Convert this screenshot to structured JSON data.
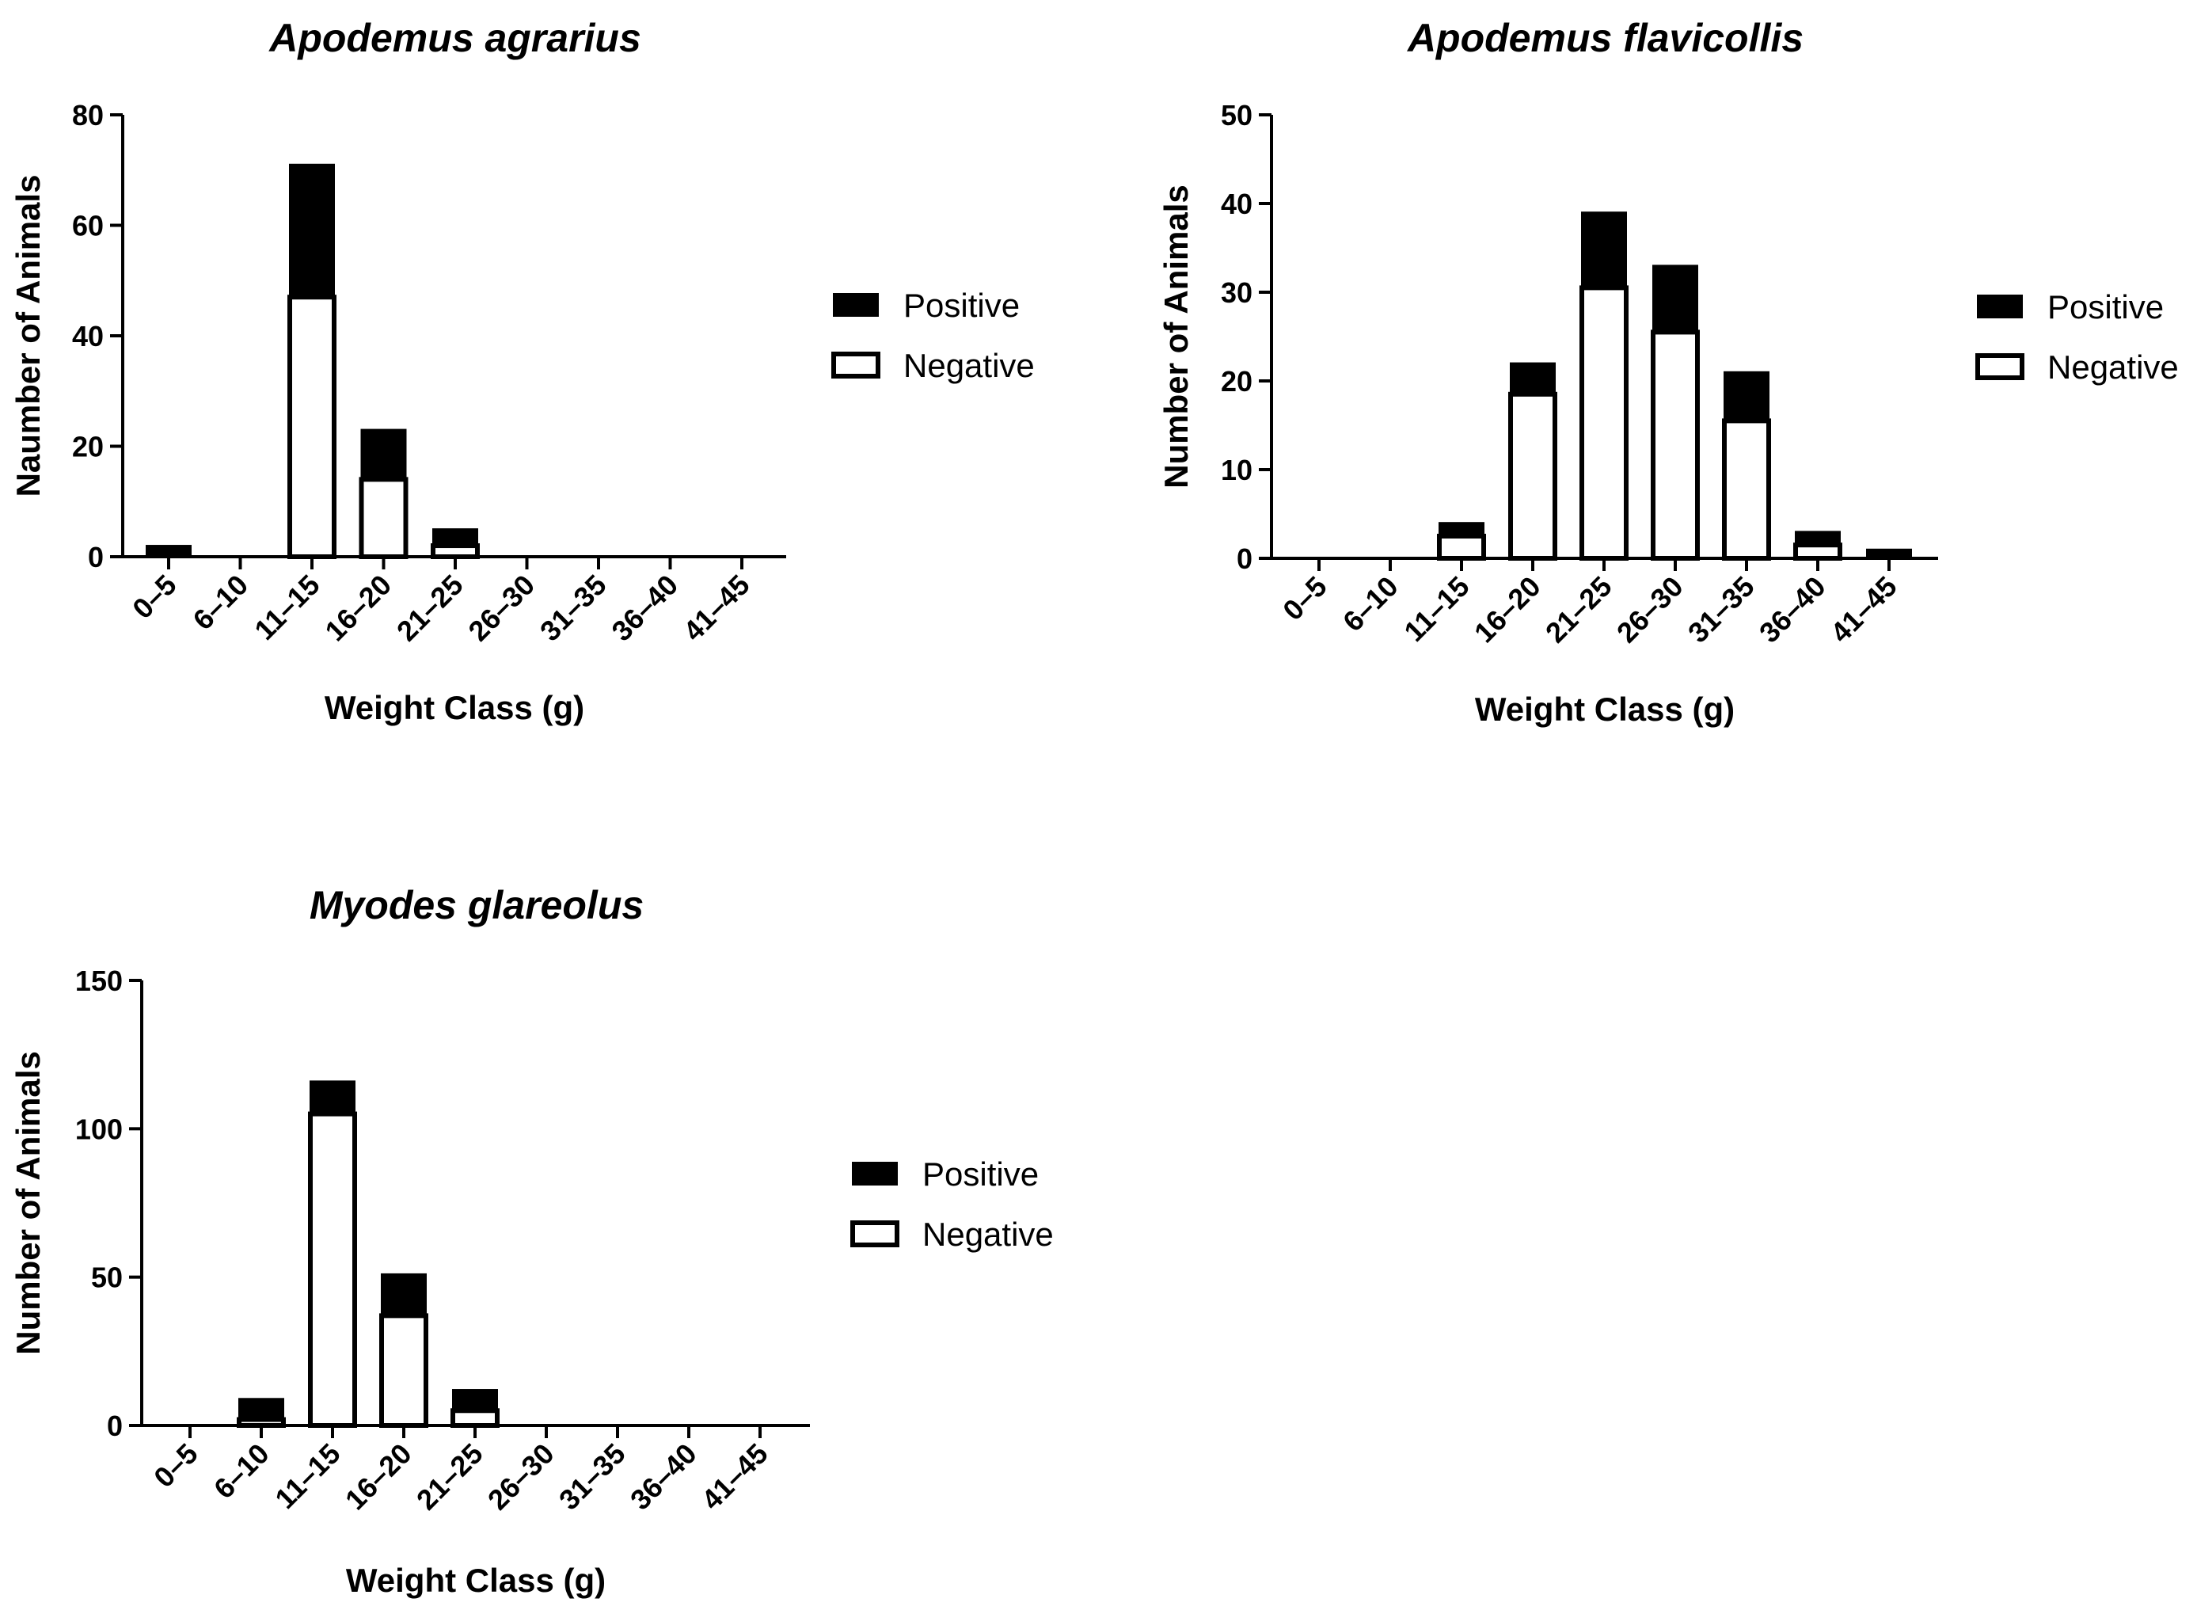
{
  "chart_data": [
    {
      "type": "bar",
      "stacked": true,
      "title": "Apodemus agrarius",
      "xlabel": "Weight Class (g)",
      "ylabel": "Naumber of Animals",
      "categories": [
        "0–5",
        "6–10",
        "11–15",
        "16–20",
        "21–25",
        "26–30",
        "31–35",
        "36–40",
        "41–45"
      ],
      "ylim": [
        0,
        80
      ],
      "yticks": [
        "0",
        "20",
        "40",
        "60",
        "80"
      ],
      "series": [
        {
          "name": "Negative",
          "values": [
            0,
            0,
            47,
            14,
            2,
            0,
            0,
            0,
            0
          ]
        },
        {
          "name": "Positive",
          "values": [
            2,
            0,
            24,
            9,
            3,
            0,
            0,
            0,
            0
          ]
        }
      ],
      "legend": [
        "Positive",
        "Negative"
      ],
      "legend_position": "right"
    },
    {
      "type": "bar",
      "stacked": true,
      "title": "Apodemus flavicollis",
      "xlabel": "Weight Class (g)",
      "ylabel": "Number of Animals",
      "categories": [
        "0–5",
        "6–10",
        "11–15",
        "16–20",
        "21–25",
        "26–30",
        "31–35",
        "36–40",
        "41–45"
      ],
      "ylim": [
        0,
        50
      ],
      "yticks": [
        "0",
        "10",
        "20",
        "30",
        "40",
        "50"
      ],
      "series": [
        {
          "name": "Negative",
          "values": [
            0,
            0,
            2.5,
            18.5,
            30.5,
            25.5,
            15.5,
            1.5,
            0
          ]
        },
        {
          "name": "Positive",
          "values": [
            0,
            0,
            1.5,
            3.5,
            8.5,
            7.5,
            5.5,
            1.5,
            1
          ]
        }
      ],
      "legend": [
        "Positive",
        "Negative"
      ],
      "legend_position": "right"
    },
    {
      "type": "bar",
      "stacked": true,
      "title": "Myodes glareolus",
      "xlabel": "Weight Class (g)",
      "ylabel": "Number of Animals",
      "categories": [
        "0–5",
        "6–10",
        "11–15",
        "16–20",
        "21–25",
        "26–30",
        "31–35",
        "36–40",
        "41–45"
      ],
      "ylim": [
        0,
        150
      ],
      "yticks": [
        "0",
        "50",
        "100",
        "150"
      ],
      "series": [
        {
          "name": "Negative",
          "values": [
            0,
            2,
            105,
            37,
            5,
            0,
            0,
            0,
            0
          ]
        },
        {
          "name": "Positive",
          "values": [
            0,
            7,
            11,
            14,
            7,
            0,
            0,
            0,
            0
          ]
        }
      ],
      "legend": [
        "Positive",
        "Negative"
      ],
      "legend_position": "right"
    }
  ],
  "colors": {
    "positive": "#000000",
    "negative": "#ffffff",
    "axis": "#000000"
  }
}
